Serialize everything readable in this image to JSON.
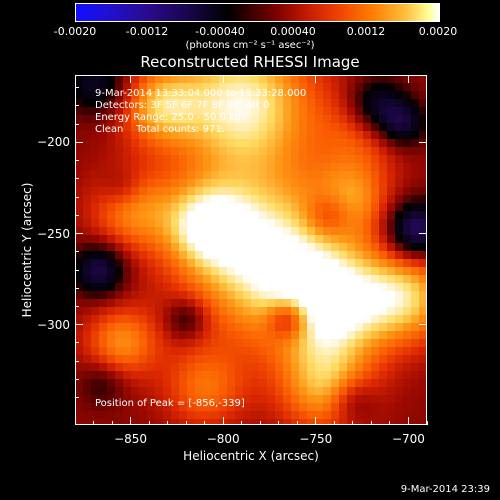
{
  "colorbar": {
    "ticks": [
      "-0.0020",
      "-0.0012",
      "-0.00040",
      "0.00040",
      "0.0012",
      "0.0020"
    ],
    "unit": "(photons cm⁻² s⁻¹ asec⁻²)"
  },
  "title": "Reconstructed RHESSI Image",
  "info": {
    "line1": "9-Mar-2014 13:33:04.000 to 13:33:28.000",
    "line2": "Detectors: 3F 5F 6F 7F 8F 9F, Att 0",
    "line3": "Energy Range: 25.0 - 50.0 keV",
    "line4": "Clean    Total counts: 971."
  },
  "peak_text": "Position of Peak = [-856,-339]",
  "xlabel": "Heliocentric X (arcsec)",
  "ylabel": "Heliocentric Y (arcsec)",
  "timestamp": "9-Mar-2014 23:39",
  "chart_data": {
    "type": "heatmap",
    "title": "Reconstructed RHESSI Image",
    "xlabel": "Heliocentric X (arcsec)",
    "ylabel": "Heliocentric Y (arcsec)",
    "xlim": [
      -880,
      -690
    ],
    "ylim": [
      -355,
      -163
    ],
    "xticks": [
      -850,
      -800,
      -750,
      -700
    ],
    "yticks": [
      -200,
      -250,
      -300
    ],
    "color_range": [
      -0.002,
      0.002
    ],
    "peak": [
      -856,
      -339
    ],
    "colormap": [
      "#1010ff",
      "#2a0a8c",
      "#000000",
      "#7a0000",
      "#f04000",
      "#ff8000",
      "#ffff90",
      "#ffffff"
    ],
    "blobs": [
      {
        "x": -790,
        "y": -178,
        "sigma": 28,
        "amp": 0.0016
      },
      {
        "x": -777,
        "y": -262,
        "sigma": 32,
        "amp": 0.0017
      },
      {
        "x": -740,
        "y": -290,
        "sigma": 22,
        "amp": 0.0014
      },
      {
        "x": -700,
        "y": -285,
        "sigma": 18,
        "amp": 0.0012
      },
      {
        "x": -850,
        "y": -237,
        "sigma": 16,
        "amp": 0.0009
      },
      {
        "x": -810,
        "y": -245,
        "sigma": 16,
        "amp": 0.0011
      },
      {
        "x": -835,
        "y": -180,
        "sigma": 15,
        "amp": 0.001
      },
      {
        "x": -855,
        "y": -310,
        "sigma": 14,
        "amp": 0.001
      },
      {
        "x": -745,
        "y": -335,
        "sigma": 18,
        "amp": 0.0011
      },
      {
        "x": -810,
        "y": -335,
        "sigma": 16,
        "amp": 0.0008
      },
      {
        "x": -730,
        "y": -230,
        "sigma": 14,
        "amp": 0.0008
      },
      {
        "x": -725,
        "y": -195,
        "sigma": 16,
        "amp": 0.0006
      },
      {
        "x": -867,
        "y": -270,
        "sigma": 10,
        "amp": -0.0012
      },
      {
        "x": -855,
        "y": -225,
        "sigma": 8,
        "amp": -0.0004
      },
      {
        "x": -717,
        "y": -180,
        "sigma": 11,
        "amp": -0.0011
      },
      {
        "x": -696,
        "y": -248,
        "sigma": 11,
        "amp": -0.0015
      },
      {
        "x": -703,
        "y": -190,
        "sigma": 9,
        "amp": -0.001
      },
      {
        "x": -765,
        "y": -297,
        "sigma": 8,
        "amp": -0.001
      },
      {
        "x": -820,
        "y": -297,
        "sigma": 8,
        "amp": -0.0007
      },
      {
        "x": -868,
        "y": -168,
        "sigma": 12,
        "amp": -0.0009
      },
      {
        "x": -730,
        "y": -342,
        "sigma": 9,
        "amp": -0.0006
      },
      {
        "x": -743,
        "y": -240,
        "sigma": 9,
        "amp": -0.0006
      },
      {
        "x": -865,
        "y": -332,
        "sigma": 9,
        "amp": -0.0005
      }
    ],
    "background": 0.0003
  }
}
